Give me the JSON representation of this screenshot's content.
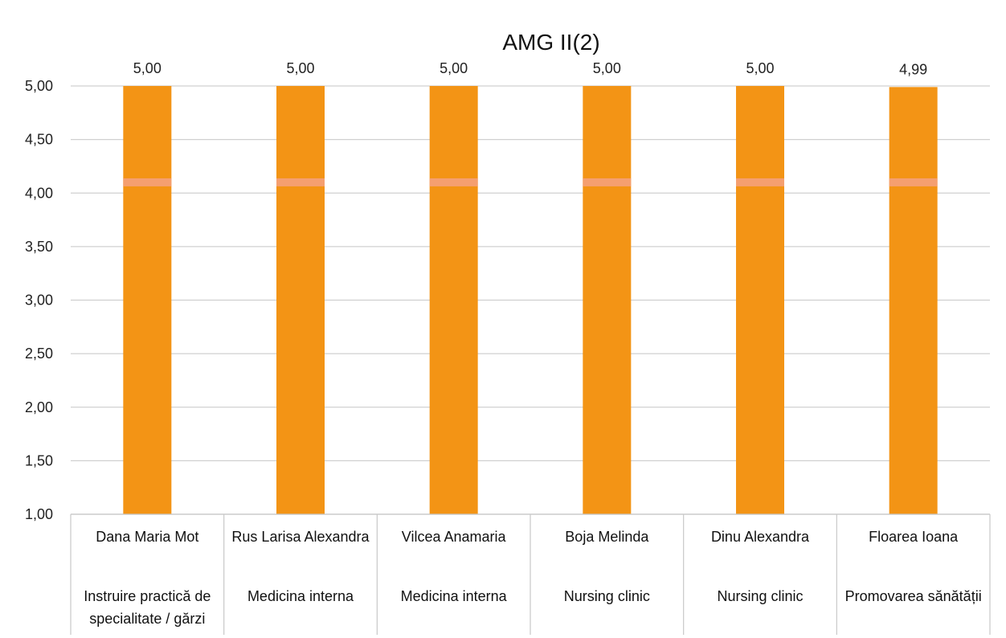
{
  "chart_data": {
    "type": "bar",
    "title": "AMG II(2)",
    "categories": [
      {
        "name": "Dana Maria Mot",
        "subject": "Instruire practică de specialitate / gărzi"
      },
      {
        "name": "Rus Larisa Alexandra",
        "subject": "Medicina interna"
      },
      {
        "name": "Vilcea Anamaria",
        "subject": "Medicina interna"
      },
      {
        "name": "Boja Melinda",
        "subject": "Nursing clinic"
      },
      {
        "name": "Dinu Alexandra",
        "subject": "Nursing clinic"
      },
      {
        "name": "Floarea Ioana",
        "subject": "Promovarea sănătății"
      }
    ],
    "values": [
      5.0,
      5.0,
      5.0,
      5.0,
      5.0,
      4.99
    ],
    "data_labels": [
      "5,00",
      "5,00",
      "5,00",
      "5,00",
      "5,00",
      "4,99"
    ],
    "ylim": [
      1.0,
      5.0
    ],
    "yticks": [
      "1,00",
      "1,50",
      "2,00",
      "2,50",
      "3,00",
      "3,50",
      "4,00",
      "4,50",
      "5,00"
    ],
    "grid": true,
    "legend": "none",
    "bar_color": "#F39415",
    "bar_stripe_color": "#F5A07A",
    "xlabel": "",
    "ylabel": ""
  }
}
